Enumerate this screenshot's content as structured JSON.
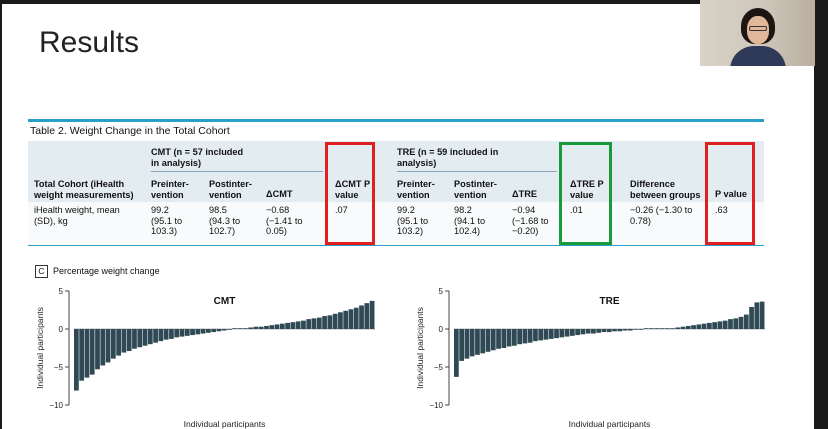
{
  "slide": {
    "title": "Results"
  },
  "table": {
    "title": "Table 2. Weight Change in the Total Cohort",
    "cmt_group": [
      "CMT (n = 57 included",
      "in analysis)"
    ],
    "tre_group": [
      "TRE (n = 59 included in",
      "analysis)"
    ],
    "col_cohort": [
      "Total Cohort (iHealth",
      "weight measurements)"
    ],
    "col_pre": [
      "Preinter-",
      "vention"
    ],
    "col_post": [
      "Postinter-",
      "vention"
    ],
    "col_dcmt": "ΔCMT",
    "col_dcmt_p": [
      "ΔCMT P",
      "value"
    ],
    "col_dtre": "ΔTRE",
    "col_dtre_p": [
      "ΔTRE P",
      "value"
    ],
    "col_diff": [
      "Difference",
      "between groups"
    ],
    "col_p": "P value",
    "row_label": [
      "iHealth weight, mean",
      "(SD), kg"
    ],
    "cmt_pre": [
      "99.2",
      "(95.1 to",
      "103.3)"
    ],
    "cmt_post": [
      "98.5",
      "(94.3 to",
      "102.7)"
    ],
    "cmt_delta": [
      "−0.68",
      "(−1.41 to",
      "0.05)"
    ],
    "cmt_p": ".07",
    "tre_pre": [
      "99.2",
      "(95.1 to",
      "103.2)"
    ],
    "tre_post": [
      "98.2",
      "(94.1 to",
      "102.4)"
    ],
    "tre_delta": [
      "−0.94",
      "(−1.68 to",
      "−0.20)"
    ],
    "tre_p": ".01",
    "diff": [
      "−0.26 (−1.30 to",
      "0.78)"
    ],
    "p_value": ".63"
  },
  "figure": {
    "panel_letter": "C",
    "panel_title": "Percentage weight change"
  },
  "colors": {
    "bar": "#2f4a55",
    "red_box": "#e02020",
    "green_box": "#1a9a3a",
    "rule": "#2aa0c8"
  },
  "chart_data": [
    {
      "type": "bar",
      "title": "CMT",
      "xlabel": "Individual participants",
      "ylabel": "Individual participants",
      "ylim": [
        -10,
        5
      ],
      "yticks": [
        5,
        0,
        -5,
        -10
      ],
      "values": [
        -8.1,
        -6.8,
        -6.4,
        -6.0,
        -5.3,
        -4.8,
        -4.4,
        -3.9,
        -3.5,
        -3.1,
        -2.9,
        -2.6,
        -2.4,
        -2.2,
        -2.0,
        -1.8,
        -1.6,
        -1.4,
        -1.3,
        -1.1,
        -1.0,
        -0.9,
        -0.8,
        -0.7,
        -0.6,
        -0.5,
        -0.4,
        -0.3,
        -0.2,
        -0.1,
        0.0,
        0.1,
        0.1,
        0.2,
        0.3,
        0.3,
        0.4,
        0.5,
        0.6,
        0.7,
        0.8,
        0.9,
        1.0,
        1.1,
        1.3,
        1.4,
        1.5,
        1.7,
        1.8,
        2.0,
        2.2,
        2.4,
        2.6,
        2.8,
        3.1,
        3.4,
        3.7
      ]
    },
    {
      "type": "bar",
      "title": "TRE",
      "xlabel": "Individual participants",
      "ylabel": "Individual participants",
      "ylim": [
        -10,
        5
      ],
      "yticks": [
        5,
        0,
        -5,
        -10
      ],
      "values": [
        -6.3,
        -4.2,
        -3.9,
        -3.6,
        -3.4,
        -3.2,
        -3.0,
        -2.8,
        -2.6,
        -2.5,
        -2.3,
        -2.2,
        -2.0,
        -1.9,
        -1.8,
        -1.6,
        -1.5,
        -1.4,
        -1.3,
        -1.2,
        -1.1,
        -1.0,
        -0.9,
        -0.8,
        -0.7,
        -0.6,
        -0.6,
        -0.5,
        -0.4,
        -0.4,
        -0.3,
        -0.3,
        -0.2,
        -0.2,
        -0.1,
        -0.1,
        0.0,
        0.0,
        0.0,
        0.1,
        0.1,
        0.1,
        0.2,
        0.3,
        0.4,
        0.5,
        0.6,
        0.7,
        0.8,
        0.9,
        1.0,
        1.1,
        1.3,
        1.4,
        1.6,
        1.9,
        2.9,
        3.5,
        3.6
      ]
    }
  ]
}
